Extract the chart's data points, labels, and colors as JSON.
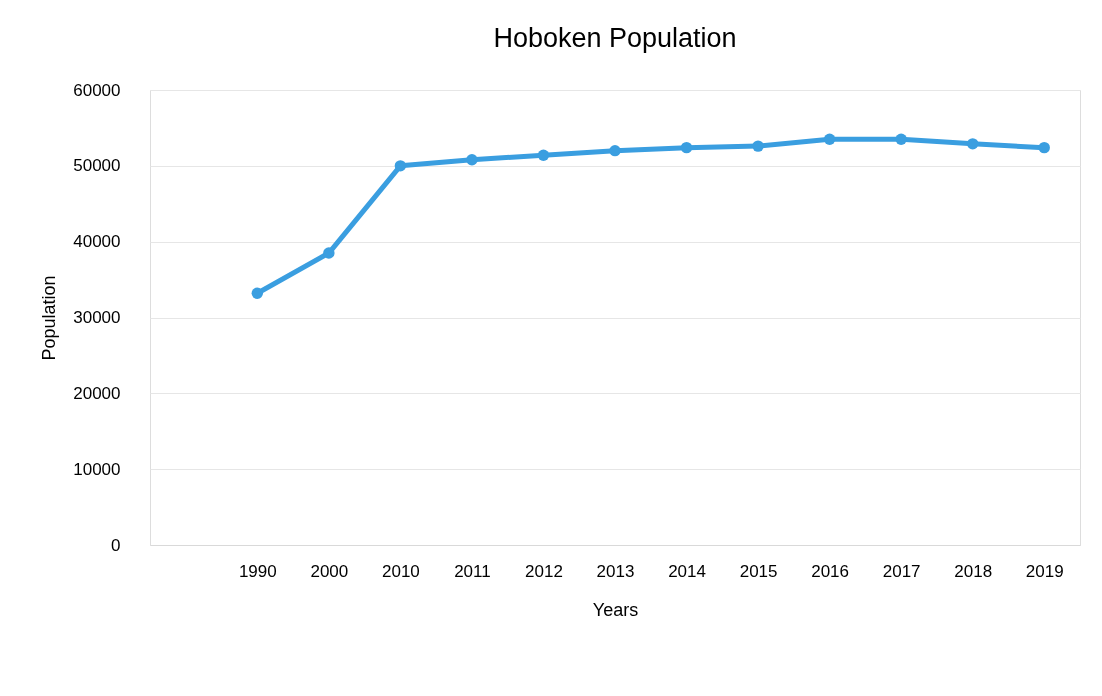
{
  "chart_data": {
    "type": "line",
    "title": "Hoboken Population",
    "xlabel": "Years",
    "ylabel": "Population",
    "categories": [
      null,
      "1990",
      "2000",
      "2010",
      "2011",
      "2012",
      "2013",
      "2014",
      "2015",
      "2016",
      "2017",
      "2018",
      "2019"
    ],
    "series": [
      {
        "color": "#3a9ee0",
        "values": [
          null,
          33200,
          38500,
          50000,
          50800,
          51400,
          52000,
          52400,
          52600,
          53500,
          53500,
          52900,
          52400
        ]
      }
    ],
    "ylim": [
      0,
      60000
    ],
    "yticks": [
      0,
      10000,
      20000,
      30000,
      40000,
      50000,
      60000
    ],
    "grid": "y",
    "marker": "circle",
    "line_style": "solid"
  }
}
